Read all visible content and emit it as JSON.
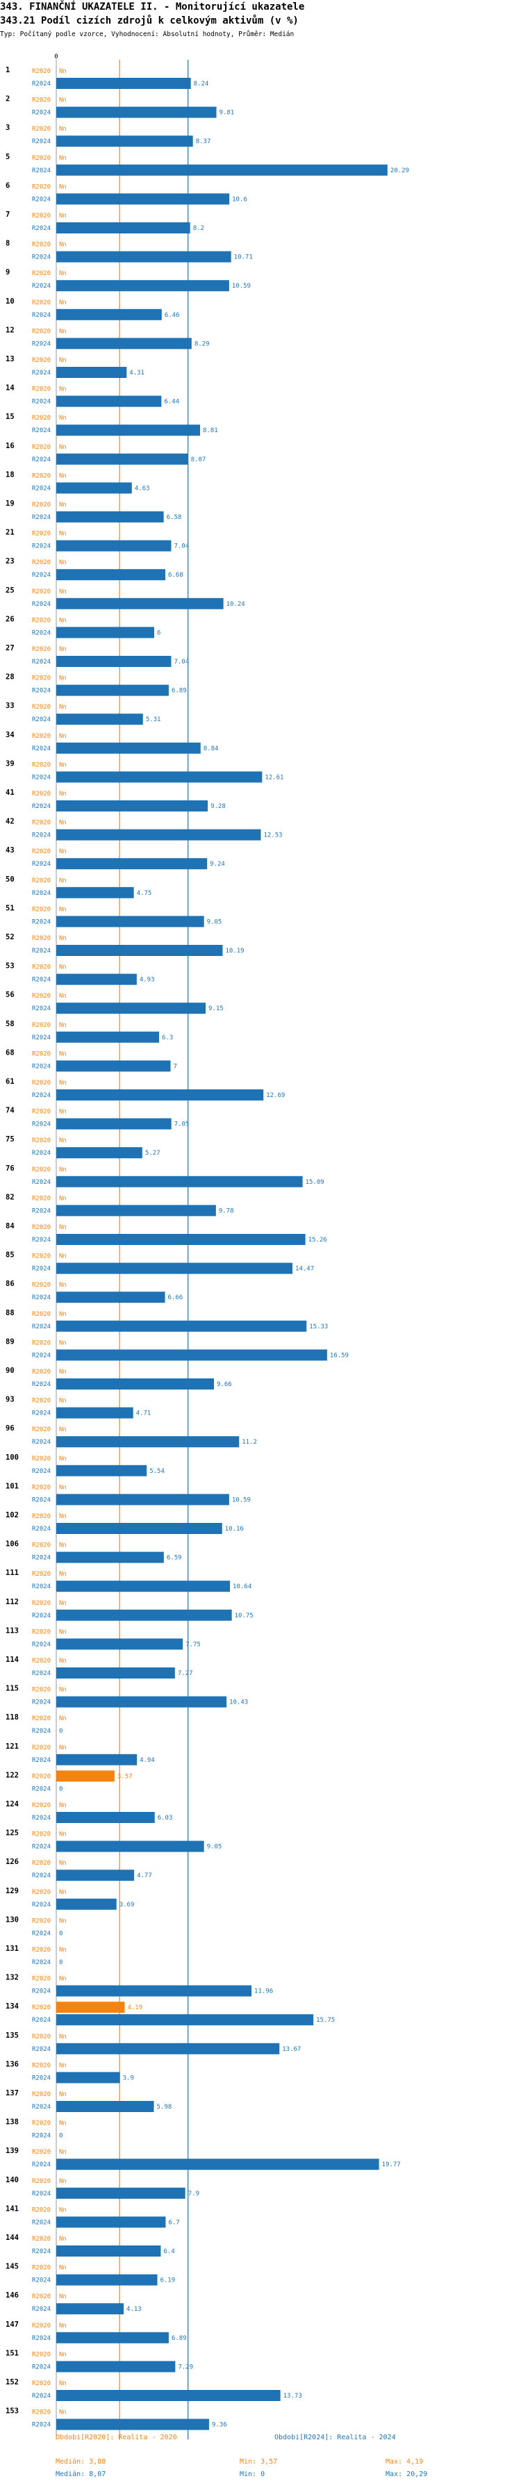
{
  "header": {
    "title": "343. FINANČNÍ UKAZATELE II. - Monitorující ukazatele",
    "subtitle": "343.21 Podíl cizích zdrojů k celkovým aktivům (v %)",
    "note": "Typ: Počítaný podle vzorce, Vyhodnocení: Absolutní hodnoty, Průměr: Medián"
  },
  "colors": {
    "r2020": "#f5830f",
    "r2024": "#1f73b4",
    "bar2024": "#1f73b4",
    "bar2020": "#f5830f"
  },
  "chart_data": {
    "type": "bar",
    "orientation": "horizontal",
    "title": "343.21 Podíl cizích zdrojů k celkovým aktivům (v %)",
    "x_tick_labels": [
      "0"
    ],
    "series_labels": [
      "R2020",
      "R2024"
    ],
    "na_label": "Nn",
    "categories": [
      "1",
      "2",
      "3",
      "5",
      "6",
      "7",
      "8",
      "9",
      "10",
      "12",
      "13",
      "14",
      "15",
      "16",
      "18",
      "19",
      "21",
      "23",
      "25",
      "26",
      "27",
      "28",
      "33",
      "34",
      "39",
      "41",
      "42",
      "43",
      "50",
      "51",
      "52",
      "53",
      "56",
      "58",
      "68",
      "61",
      "74",
      "75",
      "76",
      "82",
      "84",
      "85",
      "86",
      "88",
      "89",
      "90",
      "93",
      "96",
      "100",
      "101",
      "102",
      "106",
      "111",
      "112",
      "113",
      "114",
      "115",
      "118",
      "121",
      "122",
      "124",
      "125",
      "126",
      "129",
      "130",
      "131",
      "132",
      "134",
      "135",
      "136",
      "137",
      "138",
      "139",
      "140",
      "141",
      "144",
      "145",
      "146",
      "147",
      "151",
      "152",
      "153"
    ],
    "series": [
      {
        "name": "R2020",
        "values": [
          null,
          null,
          null,
          null,
          null,
          null,
          null,
          null,
          null,
          null,
          null,
          null,
          null,
          null,
          null,
          null,
          null,
          null,
          null,
          null,
          null,
          null,
          null,
          null,
          null,
          null,
          null,
          null,
          null,
          null,
          null,
          null,
          null,
          null,
          null,
          null,
          null,
          null,
          null,
          null,
          null,
          null,
          null,
          null,
          null,
          null,
          null,
          null,
          null,
          null,
          null,
          null,
          null,
          null,
          null,
          null,
          null,
          null,
          null,
          3.57,
          null,
          null,
          null,
          null,
          null,
          null,
          null,
          4.19,
          null,
          null,
          null,
          null,
          null,
          null,
          null,
          null,
          null,
          null,
          null,
          null,
          null,
          null
        ],
        "value_labels": [
          "Nn",
          "Nn",
          "Nn",
          "Nn",
          "Nn",
          "Nn",
          "Nn",
          "Nn",
          "Nn",
          "Nn",
          "Nn",
          "Nn",
          "Nn",
          "Nn",
          "Nn",
          "Nn",
          "Nn",
          "Nn",
          "Nn",
          "Nn",
          "Nn",
          "Nn",
          "Nn",
          "Nn",
          "Nn",
          "Nn",
          "Nn",
          "Nn",
          "Nn",
          "Nn",
          "Nn",
          "Nn",
          "Nn",
          "Nn",
          "Nn",
          "Nn",
          "Nn",
          "Nn",
          "Nn",
          "Nn",
          "Nn",
          "Nn",
          "Nn",
          "Nn",
          "Nn",
          "Nn",
          "Nn",
          "Nn",
          "Nn",
          "Nn",
          "Nn",
          "Nn",
          "Nn",
          "Nn",
          "Nn",
          "Nn",
          "Nn",
          "Nn",
          "Nn",
          "3.57",
          "Nn",
          "Nn",
          "Nn",
          "Nn",
          "Nn",
          "Nn",
          "Nn",
          "4.19",
          "Nn",
          "Nn",
          "Nn",
          "Nn",
          "Nn",
          "Nn",
          "Nn",
          "Nn",
          "Nn",
          "Nn",
          "Nn",
          "Nn",
          "Nn",
          "Nn"
        ]
      },
      {
        "name": "R2024",
        "values": [
          8.24,
          9.81,
          8.37,
          20.29,
          10.6,
          8.2,
          10.71,
          10.59,
          6.46,
          8.29,
          4.31,
          6.44,
          8.81,
          8.07,
          4.63,
          6.58,
          7.04,
          6.68,
          10.24,
          6,
          7.04,
          6.89,
          5.31,
          8.84,
          12.61,
          9.28,
          12.53,
          9.24,
          4.75,
          9.05,
          10.19,
          4.93,
          9.15,
          6.3,
          7,
          12.69,
          7.05,
          5.27,
          15.09,
          9.78,
          15.26,
          14.47,
          6.66,
          15.33,
          16.59,
          9.66,
          4.71,
          11.2,
          5.54,
          10.59,
          10.16,
          6.59,
          10.64,
          10.75,
          7.75,
          7.27,
          10.43,
          0,
          4.94,
          0,
          6.03,
          9.05,
          4.77,
          3.69,
          0,
          0,
          11.96,
          15.75,
          13.67,
          3.9,
          5.98,
          0,
          19.77,
          7.9,
          6.7,
          6.4,
          6.19,
          4.13,
          6.89,
          7.29,
          13.73,
          9.36
        ],
        "value_labels": [
          "8.24",
          "9.81",
          "8.37",
          "20.29",
          "10.6",
          "8.2",
          "10.71",
          "10.59",
          "6.46",
          "8.29",
          "4.31",
          "6.44",
          "8.81",
          "8.07",
          "4.63",
          "6.58",
          "7.04",
          "6.68",
          "10.24",
          "6",
          "7.04",
          "6.89",
          "5.31",
          "8.84",
          "12.61",
          "9.28",
          "12.53",
          "9.24",
          "4.75",
          "9.05",
          "10.19",
          "4.93",
          "9.15",
          "6.3",
          "7",
          "12.69",
          "7.05",
          "5.27",
          "15.09",
          "9.78",
          "15.26",
          "14.47",
          "6.66",
          "15.33",
          "16.59",
          "9.66",
          "4.71",
          "11.2",
          "5.54",
          "10.59",
          "10.16",
          "6.59",
          "10.64",
          "10.75",
          "7.75",
          "7.27",
          "10.43",
          "0",
          "4.94",
          "0",
          "6.03",
          "9.05",
          "4.77",
          "3.69",
          "0",
          "0",
          "11.96",
          "15.75",
          "13.67",
          "3.9",
          "5.98",
          "0",
          "19.77",
          "7.9",
          "6.7",
          "6.4",
          "6.19",
          "4.13",
          "6.89",
          "7.29",
          "13.73",
          "9.36"
        ]
      }
    ],
    "reference_lines": {
      "median_2020": 3.88,
      "median_2024": 8.07
    },
    "xlim": [
      0,
      20.29
    ]
  },
  "legend": {
    "r2020_label": "Obdobi[R2020]: Realita - 2020",
    "r2024_label": "Obdobi[R2024]: Realita - 2024",
    "r2020_median": "Medián: 3,88",
    "r2020_min": "Min: 3,57",
    "r2020_max": "Max: 4,19",
    "r2024_median": "Medián: 8,07",
    "r2024_min": "Min: 0",
    "r2024_max": "Max: 20,29"
  }
}
